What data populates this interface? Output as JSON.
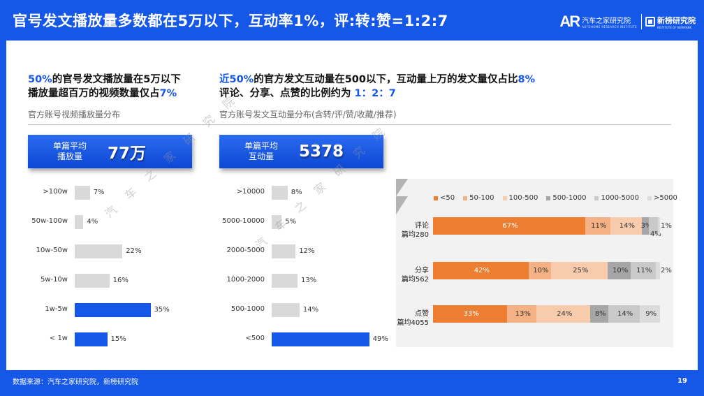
{
  "header": {
    "title": "官号发文播放量多数都在5万以下，互动率1%，评:转:赞=1:2:7",
    "logo_ar": "AR",
    "logo_ar_cn": "汽车之家研究院",
    "logo_ar_en": "AUTOHOME RESEARCH INSTITUTE",
    "logo_xb_cn": "新榜研究院",
    "logo_xb_en": "INSTITUTE OF NEWRANK"
  },
  "left": {
    "headline_l1_hl": "50%",
    "headline_l1_rest": "的官号发文播放量在5万以下",
    "headline_l2_a": "播放量超百万的视频数量仅占",
    "headline_l2_hl": "7%",
    "subhead": "官方账号视频播放量分布",
    "kpi_label": "单篇平均\n播放量",
    "kpi_value": "77万"
  },
  "middle": {
    "headline_l1_hl_a": "近50%",
    "headline_l1_rest": "的官方发文互动量在500以下，互动量上万的发文量仅占比",
    "headline_l1_hl_b": "8%",
    "headline_l2_a": "评论、分享、点赞的比例约为",
    "headline_l2_hl": " 1：2：7",
    "subhead": "官方账号发文互动量分布(含转/评/赞/收藏/推荐)",
    "kpi_label": "单篇平均\n互动量",
    "kpi_value": "5378"
  },
  "chart_data": [
    {
      "type": "bar",
      "orientation": "horizontal",
      "categories": [
        ">100w",
        "50w-100w",
        "10w-50w",
        "5w-10w",
        "1w-5w",
        "< 1w"
      ],
      "values": [
        7,
        4,
        22,
        16,
        35,
        15
      ],
      "value_labels": [
        "7%",
        "4%",
        "22%",
        "16%",
        "35%",
        "15%"
      ],
      "highlight": [
        false,
        false,
        false,
        false,
        true,
        true
      ],
      "colors": {
        "default": "#d9d9d9",
        "highlight": "#1557e6"
      }
    },
    {
      "type": "bar",
      "orientation": "horizontal",
      "categories": [
        ">10000",
        "5000-10000",
        "2000-5000",
        "1000-2000",
        "500-1000",
        "<500"
      ],
      "values": [
        8,
        5,
        12,
        13,
        14,
        49
      ],
      "value_labels": [
        "8%",
        "5%",
        "12%",
        "13%",
        "14%",
        "49%"
      ],
      "highlight": [
        false,
        false,
        false,
        false,
        false,
        true
      ],
      "colors": {
        "default": "#d9d9d9",
        "highlight": "#1557e6"
      }
    },
    {
      "type": "bar",
      "orientation": "horizontal",
      "stacked": true,
      "legend": {
        "placement": "top"
      },
      "series": [
        {
          "name": "<50",
          "color": "#ed7d31"
        },
        {
          "name": "50-100",
          "color": "#f4b183"
        },
        {
          "name": "100-500",
          "color": "#f8cbad"
        },
        {
          "name": "500-1000",
          "color": "#a6a6a6"
        },
        {
          "name": "1000-5000",
          "color": "#c9c9c9"
        },
        {
          "name": ">5000",
          "color": "#dcdcdc"
        }
      ],
      "rows": [
        {
          "label_1": "评论",
          "label_2": "篇均280",
          "values": [
            67,
            11,
            14,
            3,
            4,
            1
          ],
          "labels": [
            "67%",
            "11%",
            "14%",
            "3%",
            "4%",
            "1%"
          ]
        },
        {
          "label_1": "分享",
          "label_2": "篇均562",
          "values": [
            42,
            10,
            25,
            10,
            11,
            2
          ],
          "labels": [
            "42%",
            "10%",
            "25%",
            "10%",
            "11%",
            "2%"
          ]
        },
        {
          "label_1": "点赞",
          "label_2": "篇均4055",
          "values": [
            33,
            13,
            24,
            8,
            14,
            9
          ],
          "labels": [
            "33%",
            "13%",
            "24%",
            "8%",
            "14%",
            "9%"
          ]
        }
      ]
    }
  ],
  "footer": {
    "source": "数据来源：汽车之家研究院，新榜研究院",
    "page": "19"
  },
  "watermark": [
    "汽",
    "车",
    "之",
    "家",
    "研",
    "究",
    "院"
  ]
}
